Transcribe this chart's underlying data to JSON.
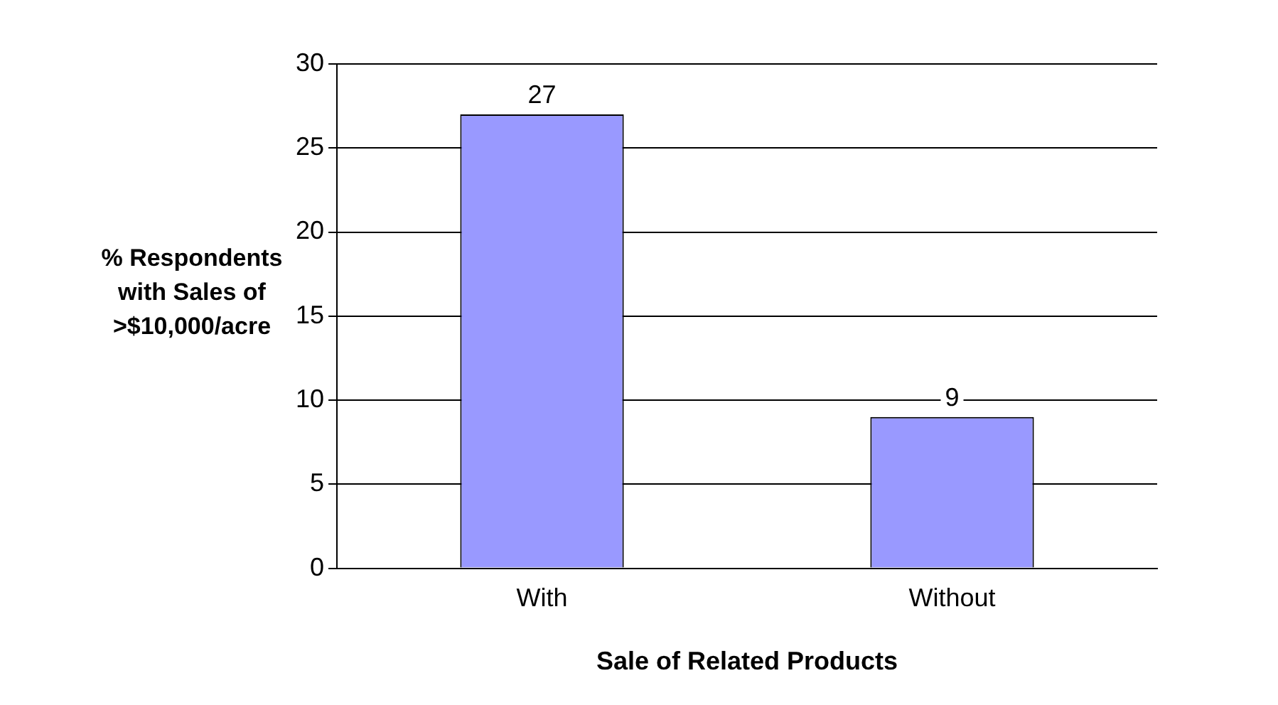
{
  "chart_data": {
    "type": "bar",
    "xlabel": "Sale of Related Products",
    "ylabel": "% Respondents with Sales of >$10,000/acre",
    "categories": [
      "With",
      "Without"
    ],
    "values": [
      27,
      9
    ],
    "color": "#9999ff",
    "ylim": [
      0,
      30
    ],
    "yticks": [
      0,
      5,
      10,
      15,
      20,
      25,
      30
    ],
    "grid": "y",
    "data_labels": true,
    "legend": false
  }
}
